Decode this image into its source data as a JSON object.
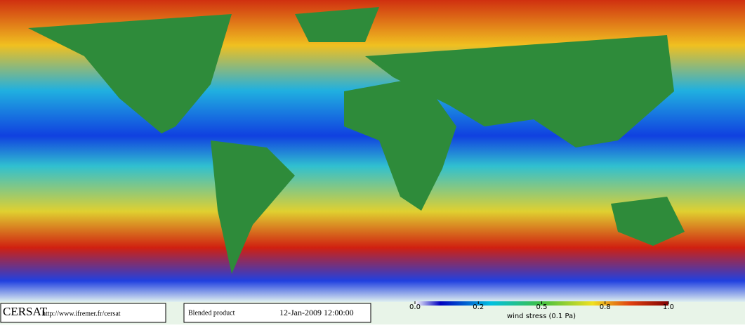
{
  "logo": "CERSAT",
  "url": "http://www.ifremer.fr/cersat",
  "product": "Blended product",
  "date": "12-Jan-2009 12:00:00",
  "colorbar": {
    "label": "wind stress (0.1 Pa)",
    "lim": [
      0,
      1
    ],
    "ticks": [
      {
        "value": 0,
        "label": "0.0"
      },
      {
        "value": 0.25,
        "label": "0.2"
      },
      {
        "value": 0.5,
        "label": "0.5"
      },
      {
        "value": 0.75,
        "label": "0.8"
      },
      {
        "value": 1,
        "label": "1.0"
      }
    ]
  }
}
